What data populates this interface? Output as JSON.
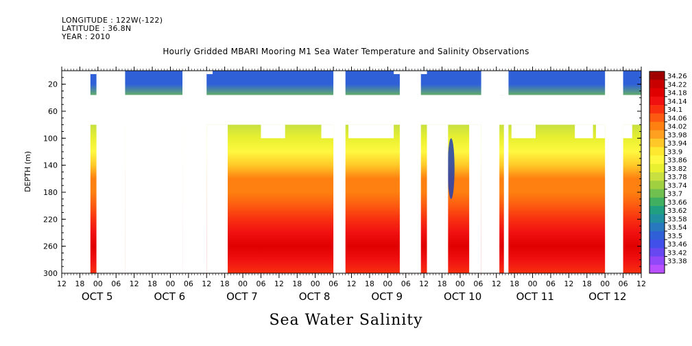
{
  "header": {
    "longitude": "LONGITUDE : 122W(-122)",
    "latitude": "LATITUDE : 36.8N",
    "year": "YEAR : 2010"
  },
  "chart_data": {
    "type": "heatmap",
    "title": "Hourly Gridded MBARI Mooring M1 Sea Water Temperature and Salinity Observations",
    "footer_title": "Sea Water Salinity",
    "ylabel": "DEPTH (m)",
    "ylim": [
      300,
      0
    ],
    "y_ticks": [
      20,
      60,
      100,
      140,
      180,
      220,
      260,
      300
    ],
    "x_start": "OCT 4 12:00",
    "x_end": "OCT 12 12:00",
    "x_hour_ticks": [
      "12",
      "18",
      "00",
      "06",
      "12",
      "18",
      "00",
      "06",
      "12",
      "18",
      "00",
      "06",
      "12",
      "18",
      "00",
      "06",
      "12",
      "18",
      "00",
      "06",
      "12",
      "18",
      "00",
      "06",
      "12",
      "18",
      "00",
      "06",
      "12",
      "18",
      "00",
      "06",
      "12"
    ],
    "x_day_labels": [
      "OCT  5",
      "OCT  6",
      "OCT  7",
      "OCT  8",
      "OCT  9",
      "OCT 10",
      "OCT 11",
      "OCT 12"
    ],
    "colorbar": {
      "levels": [
        "34.26",
        "34.22",
        "34.18",
        "34.14",
        "34.1",
        "34.06",
        "34.02",
        "33.98",
        "33.94",
        "33.9",
        "33.86",
        "33.82",
        "33.78",
        "33.74",
        "33.7",
        "33.66",
        "33.62",
        "33.58",
        "33.54",
        "33.5",
        "33.46",
        "33.42",
        "33.38"
      ],
      "colors": [
        "#a00000",
        "#c80000",
        "#e00000",
        "#f01010",
        "#f83010",
        "#fc5a10",
        "#fe8010",
        "#ffa020",
        "#ffc828",
        "#ffe830",
        "#fff840",
        "#e8f030",
        "#c8e040",
        "#a0d040",
        "#70c050",
        "#40b060",
        "#20a080",
        "#2090a0",
        "#2878c0",
        "#3060d8",
        "#4050e8",
        "#6848f0",
        "#9048f8",
        "#b850ff"
      ]
    },
    "depth_profile_salinity": [
      {
        "depth": 5,
        "value": 33.54
      },
      {
        "depth": 20,
        "value": 33.54
      },
      {
        "depth": 40,
        "value": 33.74
      },
      {
        "depth": 80,
        "value": 33.82
      },
      {
        "depth": 100,
        "value": 33.86
      },
      {
        "depth": 120,
        "value": 33.9
      },
      {
        "depth": 140,
        "value": 33.98
      },
      {
        "depth": 160,
        "value": 34.04
      },
      {
        "depth": 180,
        "value": 34.06
      },
      {
        "depth": 200,
        "value": 34.08
      },
      {
        "depth": 220,
        "value": 34.12
      },
      {
        "depth": 240,
        "value": 34.18
      },
      {
        "depth": 260,
        "value": 34.22
      },
      {
        "depth": 280,
        "value": 34.18
      },
      {
        "depth": 300,
        "value": 34.14
      }
    ],
    "notable_feature": {
      "time": "OCT 9 22:00",
      "depth_range": [
        100,
        190
      ],
      "value": 33.54
    },
    "grid": false
  }
}
